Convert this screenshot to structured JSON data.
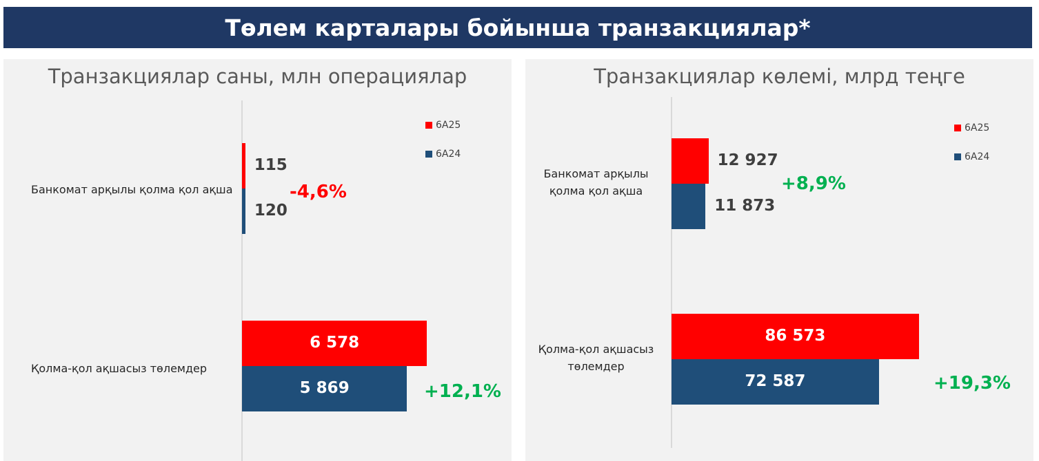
{
  "header": {
    "title": "Төлем карталары бойынша транзакциялар*"
  },
  "legend": [
    {
      "label": "6А25",
      "color": "#ff0000"
    },
    {
      "label": "6А24",
      "color": "#1f4e79"
    }
  ],
  "chart_data": [
    {
      "type": "bar",
      "orientation": "horizontal",
      "title": "Транзакциялар саны, млн операциялар",
      "categories": [
        "Банкомат арқылы қолма қол ақша",
        "Қолма-қол ақшасыз төлемдер"
      ],
      "series": [
        {
          "name": "6А25",
          "color": "#ff0000",
          "values": [
            115,
            6578
          ],
          "labels": [
            "115",
            "6 578"
          ]
        },
        {
          "name": "6А24",
          "color": "#1f4e79",
          "values": [
            120,
            5869
          ],
          "labels": [
            "120",
            "5 869"
          ]
        }
      ],
      "changes": [
        "-4,6%",
        "+12,1%"
      ],
      "xlim": [
        0,
        7600
      ],
      "legend_position": "top-right"
    },
    {
      "type": "bar",
      "orientation": "horizontal",
      "title": "Транзакциялар көлемі, млрд теңге",
      "categories": [
        "Банкомат арқылы қолма қол ақша",
        "Қолма-қол ақшасыз төлемдер"
      ],
      "category_lines": [
        [
          "Банкомат арқылы",
          "қолма қол ақша"
        ],
        [
          "Қолма-қол ақшасыз",
          "төлемдер"
        ]
      ],
      "series": [
        {
          "name": "6А25",
          "color": "#ff0000",
          "values": [
            12927,
            86573
          ],
          "labels": [
            "12 927",
            "86 573"
          ]
        },
        {
          "name": "6А24",
          "color": "#1f4e79",
          "values": [
            11873,
            72587
          ],
          "labels": [
            "11 873",
            "72 587"
          ]
        }
      ],
      "changes": [
        "+8,9%",
        "+19,3%"
      ],
      "xlim": [
        0,
        105000
      ],
      "legend_position": "top-right"
    }
  ]
}
